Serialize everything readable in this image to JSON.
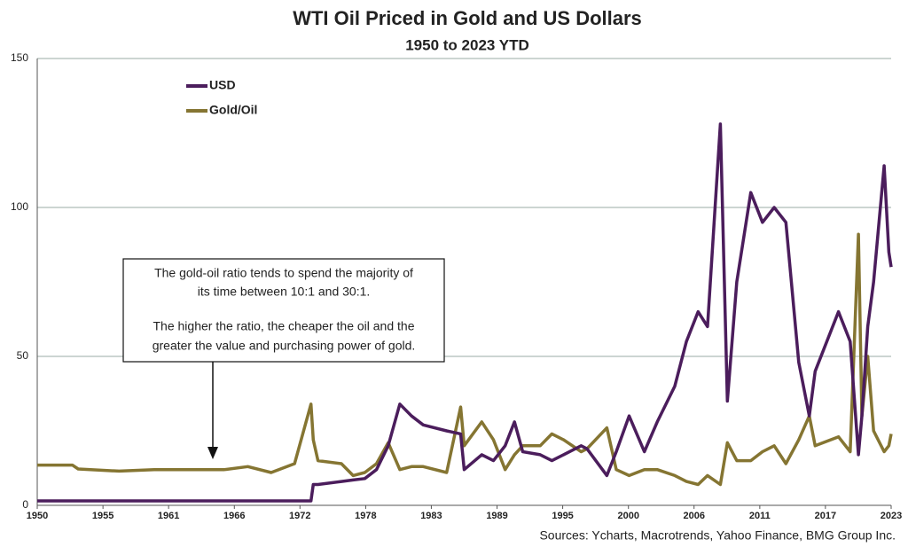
{
  "chart_data": {
    "type": "line",
    "title": "WTI Oil Priced in Gold and US Dollars",
    "subtitle": "1950 to 2023 YTD",
    "source": "Sources: Ycharts, Macrotrends, Yahoo Finance, BMG Group Inc.",
    "annotation": [
      "The gold-oil ratio tends to spend the majority of",
      "its time between 10:1 and 30:1.",
      "The higher the ratio, the cheaper the oil and the",
      "greater the value and purchasing power of gold."
    ],
    "x": [
      1950,
      1953,
      1953.5,
      1957,
      1960,
      1966,
      1968,
      1970,
      1972,
      1973.4,
      1973.6,
      1974,
      1976,
      1977,
      1978,
      1979,
      1980,
      1981,
      1982,
      1983,
      1985,
      1986.2,
      1986.5,
      1988,
      1989,
      1990,
      1990.8,
      1991.5,
      1993,
      1994,
      1995,
      1996.5,
      1997,
      1998.7,
      1999.5,
      2000.6,
      2001.9,
      2003,
      2004.5,
      2005.5,
      2006.5,
      2007.3,
      2008.4,
      2009,
      2009.8,
      2011,
      2012,
      2013,
      2014,
      2015.1,
      2016,
      2016.5,
      2018.5,
      2019.5,
      2020.2,
      2020.5,
      2021,
      2021.5,
      2022.4,
      2022.8,
      2023
    ],
    "series": [
      {
        "name": "USD",
        "color": "#4b1d5c",
        "values": [
          1.5,
          1.5,
          1.5,
          1.5,
          1.5,
          1.5,
          1.5,
          1.5,
          1.5,
          1.5,
          7,
          7,
          8,
          8.5,
          9,
          12,
          20,
          34,
          30,
          27,
          25,
          24,
          12,
          17,
          15,
          20,
          28,
          18,
          17,
          15,
          17,
          20,
          19,
          10,
          18,
          30,
          18,
          28,
          40,
          55,
          65,
          60,
          128,
          35,
          75,
          105,
          95,
          100,
          95,
          48,
          30,
          45,
          65,
          55,
          17,
          30,
          60,
          75,
          114,
          85,
          80
        ]
      },
      {
        "name": "Gold/Oil",
        "color": "#857532",
        "values": [
          13.5,
          13.5,
          12.2,
          11.5,
          12,
          12,
          13,
          11,
          14,
          34,
          22,
          15,
          14,
          10,
          11,
          14,
          21,
          12,
          13,
          13,
          11,
          33,
          20,
          28,
          22,
          12,
          17,
          20,
          20,
          24,
          22,
          18,
          19,
          26,
          12,
          10,
          12,
          12,
          10,
          8,
          7,
          10,
          7,
          21,
          15,
          15,
          18,
          20,
          14,
          22,
          30,
          20,
          23,
          18,
          91,
          30,
          50,
          25,
          18,
          20,
          24
        ]
      }
    ],
    "xlim": [
      1950,
      2023
    ],
    "xticks": [
      1950,
      {
        "value": 1955.62,
        "label": "1955"
      },
      {
        "value": 1961.23,
        "label": "1961"
      },
      {
        "value": 1966.85,
        "label": "1966"
      },
      {
        "value": 1972.46,
        "label": "1972"
      },
      {
        "value": 1978.08,
        "label": "1978"
      },
      {
        "value": 1983.69,
        "label": "1983"
      },
      {
        "value": 1989.31,
        "label": "1989"
      },
      {
        "value": 1994.92,
        "label": "1995"
      },
      {
        "value": 2000.54,
        "label": "2000"
      },
      {
        "value": 2006.15,
        "label": "2006"
      },
      {
        "value": 2011.77,
        "label": "2011"
      },
      {
        "value": 2017.38,
        "label": "2017"
      },
      2023
    ],
    "ylim": [
      0,
      150
    ],
    "yticks": [
      0,
      50,
      100,
      150
    ],
    "grid": true,
    "legend": "top-left"
  }
}
